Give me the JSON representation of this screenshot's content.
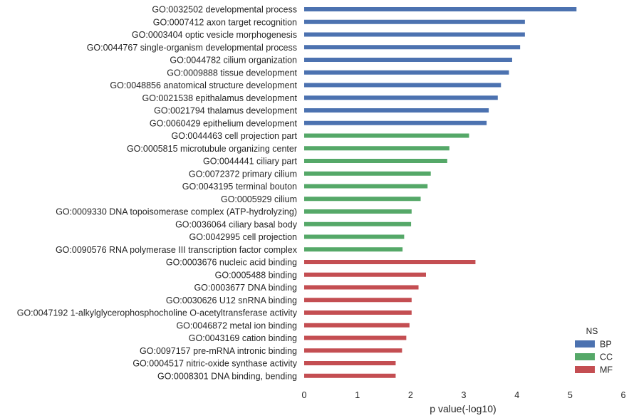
{
  "chart_data": {
    "type": "bar",
    "orientation": "horizontal",
    "xlabel": "p value(-log10)",
    "ylabel": "",
    "xlim": [
      0,
      6
    ],
    "xticks": [
      "0",
      "1",
      "2",
      "3",
      "4",
      "5",
      "6"
    ],
    "grid": false,
    "legend": {
      "title": "NS",
      "placement": "bottom-right",
      "entries": [
        {
          "name": "BP",
          "color": "#4c72b0"
        },
        {
          "name": "CC",
          "color": "#55a868"
        },
        {
          "name": "MF",
          "color": "#c44e52"
        }
      ]
    },
    "categories": [
      "GO:0032502 developmental process",
      "GO:0007412 axon target recognition",
      "GO:0003404 optic vesicle morphogenesis",
      "GO:0044767 single-organism developmental process",
      "GO:0044782 cilium organization",
      "GO:0009888 tissue development",
      "GO:0048856 anatomical structure development",
      "GO:0021538 epithalamus development",
      "GO:0021794 thalamus development",
      "GO:0060429 epithelium development",
      "GO:0044463 cell projection part",
      "GO:0005815 microtubule organizing center",
      "GO:0044441 ciliary part",
      "GO:0072372 primary cilium",
      "GO:0043195 terminal bouton",
      "GO:0005929 cilium",
      "GO:0009330 DNA topoisomerase complex (ATP-hydrolyzing)",
      "GO:0036064 ciliary basal body",
      "GO:0042995 cell projection",
      "GO:0090576 RNA polymerase III transcription factor complex",
      "GO:0003676 nucleic acid binding",
      "GO:0005488 binding",
      "GO:0003677 DNA binding",
      "GO:0030626 U12 snRNA binding",
      "GO:0047192 1-alkylglycerophosphocholine O-acetyltransferase activity",
      "GO:0046872 metal ion binding",
      "GO:0043169 cation binding",
      "GO:0097157 pre-mRNA intronic binding",
      "GO:0004517 nitric-oxide synthase activity",
      "GO:0008301 DNA binding, bending"
    ],
    "groups": [
      "BP",
      "BP",
      "BP",
      "BP",
      "BP",
      "BP",
      "BP",
      "BP",
      "BP",
      "BP",
      "CC",
      "CC",
      "CC",
      "CC",
      "CC",
      "CC",
      "CC",
      "CC",
      "CC",
      "CC",
      "MF",
      "MF",
      "MF",
      "MF",
      "MF",
      "MF",
      "MF",
      "MF",
      "MF",
      "MF"
    ],
    "values": [
      5.12,
      4.15,
      4.15,
      4.06,
      3.91,
      3.85,
      3.7,
      3.64,
      3.47,
      3.43,
      3.1,
      2.73,
      2.69,
      2.38,
      2.32,
      2.19,
      2.02,
      2.01,
      1.88,
      1.85,
      3.22,
      2.29,
      2.15,
      2.02,
      2.02,
      1.98,
      1.92,
      1.84,
      1.72,
      1.72
    ]
  }
}
